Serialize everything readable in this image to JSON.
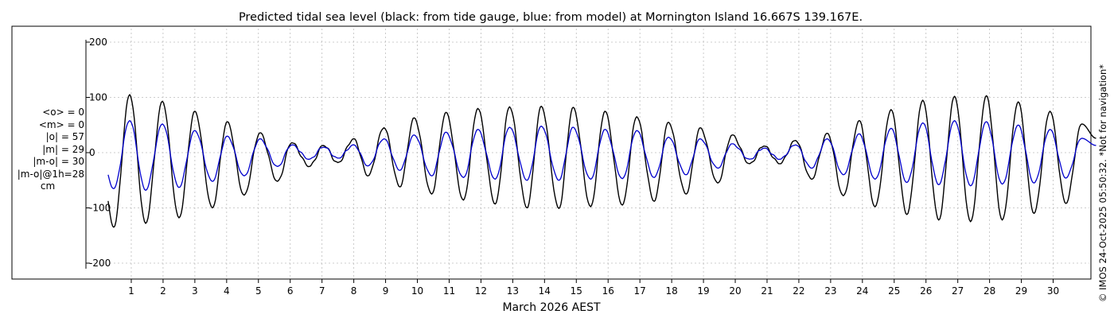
{
  "stats": {
    "mean_obs": "<o> = 0",
    "mean_model": "<m> = 0",
    "abs_obs": "|o| = 57",
    "abs_model": "|m| = 29",
    "abs_diff": "|m-o| = 30",
    "abs_diff_1h": "|m-o|@1h=28",
    "unit": "cm"
  },
  "credit": "© IMOS 24-Oct-2025 05:50:32. *Not for navigation*",
  "chart_data": {
    "type": "line",
    "title": "Predicted tidal sea level (black: from tide gauge, blue: from model) at Mornington Island 16.667S 139.167E.",
    "xlabel": "March 2026 AEST",
    "ylabel": "",
    "xlim": [
      0.3,
      31.35
    ],
    "ylim": [
      -230,
      235
    ],
    "yticks": [
      -200,
      -100,
      0,
      100,
      200
    ],
    "xticks": [
      1,
      2,
      3,
      4,
      5,
      6,
      7,
      8,
      9,
      10,
      11,
      12,
      13,
      14,
      15,
      16,
      17,
      18,
      19,
      20,
      21,
      22,
      23,
      24,
      25,
      26,
      27,
      28,
      29,
      30
    ],
    "grid": true,
    "series": [
      {
        "name": "tide gauge",
        "color": "#000000",
        "high_tides": [
          [
            0.95,
            105
          ],
          [
            1.98,
            93
          ],
          [
            3.0,
            75
          ],
          [
            4.02,
            56
          ],
          [
            5.05,
            36
          ],
          [
            6.05,
            18
          ],
          [
            7.05,
            13
          ],
          [
            8.0,
            25
          ],
          [
            8.95,
            45
          ],
          [
            9.9,
            63
          ],
          [
            10.9,
            73
          ],
          [
            11.9,
            80
          ],
          [
            12.9,
            83
          ],
          [
            13.9,
            84
          ],
          [
            14.9,
            82
          ],
          [
            15.9,
            75
          ],
          [
            16.9,
            65
          ],
          [
            17.9,
            55
          ],
          [
            18.9,
            45
          ],
          [
            19.9,
            32
          ],
          [
            20.9,
            12
          ],
          [
            21.9,
            22
          ],
          [
            22.9,
            35
          ],
          [
            23.9,
            58
          ],
          [
            24.9,
            78
          ],
          [
            25.9,
            95
          ],
          [
            26.9,
            102
          ],
          [
            27.9,
            103
          ],
          [
            28.9,
            92
          ],
          [
            29.9,
            75
          ],
          [
            30.9,
            52
          ]
        ],
        "low_tides": [
          [
            0.45,
            -135
          ],
          [
            1.45,
            -128
          ],
          [
            2.5,
            -118
          ],
          [
            3.55,
            -100
          ],
          [
            4.55,
            -77
          ],
          [
            5.6,
            -52
          ],
          [
            6.6,
            -25
          ],
          [
            7.5,
            -18
          ],
          [
            8.45,
            -42
          ],
          [
            9.45,
            -62
          ],
          [
            10.45,
            -75
          ],
          [
            11.45,
            -86
          ],
          [
            12.45,
            -93
          ],
          [
            13.45,
            -100
          ],
          [
            14.45,
            -101
          ],
          [
            15.45,
            -98
          ],
          [
            16.45,
            -95
          ],
          [
            17.45,
            -88
          ],
          [
            18.45,
            -75
          ],
          [
            19.45,
            -55
          ],
          [
            20.45,
            -20
          ],
          [
            21.4,
            -20
          ],
          [
            22.4,
            -48
          ],
          [
            23.4,
            -78
          ],
          [
            24.4,
            -98
          ],
          [
            25.4,
            -112
          ],
          [
            26.4,
            -122
          ],
          [
            27.4,
            -125
          ],
          [
            28.4,
            -122
          ],
          [
            29.4,
            -110
          ],
          [
            30.4,
            -92
          ]
        ]
      },
      {
        "name": "model",
        "color": "#0000cc",
        "high_tides": [
          [
            0.95,
            58
          ],
          [
            1.98,
            52
          ],
          [
            3.0,
            40
          ],
          [
            4.02,
            30
          ],
          [
            5.05,
            25
          ],
          [
            6.05,
            14
          ],
          [
            7.05,
            10
          ],
          [
            8.0,
            14
          ],
          [
            8.95,
            25
          ],
          [
            9.9,
            32
          ],
          [
            10.9,
            37
          ],
          [
            11.9,
            42
          ],
          [
            12.9,
            46
          ],
          [
            13.9,
            48
          ],
          [
            14.9,
            46
          ],
          [
            15.9,
            42
          ],
          [
            16.9,
            40
          ],
          [
            17.9,
            28
          ],
          [
            18.9,
            25
          ],
          [
            19.9,
            16
          ],
          [
            20.9,
            8
          ],
          [
            21.9,
            14
          ],
          [
            22.9,
            25
          ],
          [
            23.9,
            34
          ],
          [
            24.9,
            44
          ],
          [
            25.9,
            54
          ],
          [
            26.9,
            58
          ],
          [
            27.9,
            56
          ],
          [
            28.9,
            50
          ],
          [
            29.9,
            42
          ],
          [
            30.9,
            26
          ]
        ],
        "low_tides": [
          [
            0.45,
            -65
          ],
          [
            1.45,
            -68
          ],
          [
            2.5,
            -63
          ],
          [
            3.55,
            -52
          ],
          [
            4.55,
            -42
          ],
          [
            5.6,
            -25
          ],
          [
            6.6,
            -12
          ],
          [
            7.5,
            -10
          ],
          [
            8.45,
            -24
          ],
          [
            9.45,
            -32
          ],
          [
            10.45,
            -42
          ],
          [
            11.45,
            -45
          ],
          [
            12.45,
            -48
          ],
          [
            13.45,
            -50
          ],
          [
            14.45,
            -50
          ],
          [
            15.45,
            -48
          ],
          [
            16.45,
            -47
          ],
          [
            17.45,
            -45
          ],
          [
            18.45,
            -40
          ],
          [
            19.45,
            -28
          ],
          [
            20.45,
            -12
          ],
          [
            21.4,
            -12
          ],
          [
            22.4,
            -28
          ],
          [
            23.4,
            -40
          ],
          [
            24.4,
            -48
          ],
          [
            25.4,
            -54
          ],
          [
            26.4,
            -58
          ],
          [
            27.4,
            -60
          ],
          [
            28.4,
            -57
          ],
          [
            29.4,
            -55
          ],
          [
            30.4,
            -46
          ]
        ]
      }
    ]
  }
}
